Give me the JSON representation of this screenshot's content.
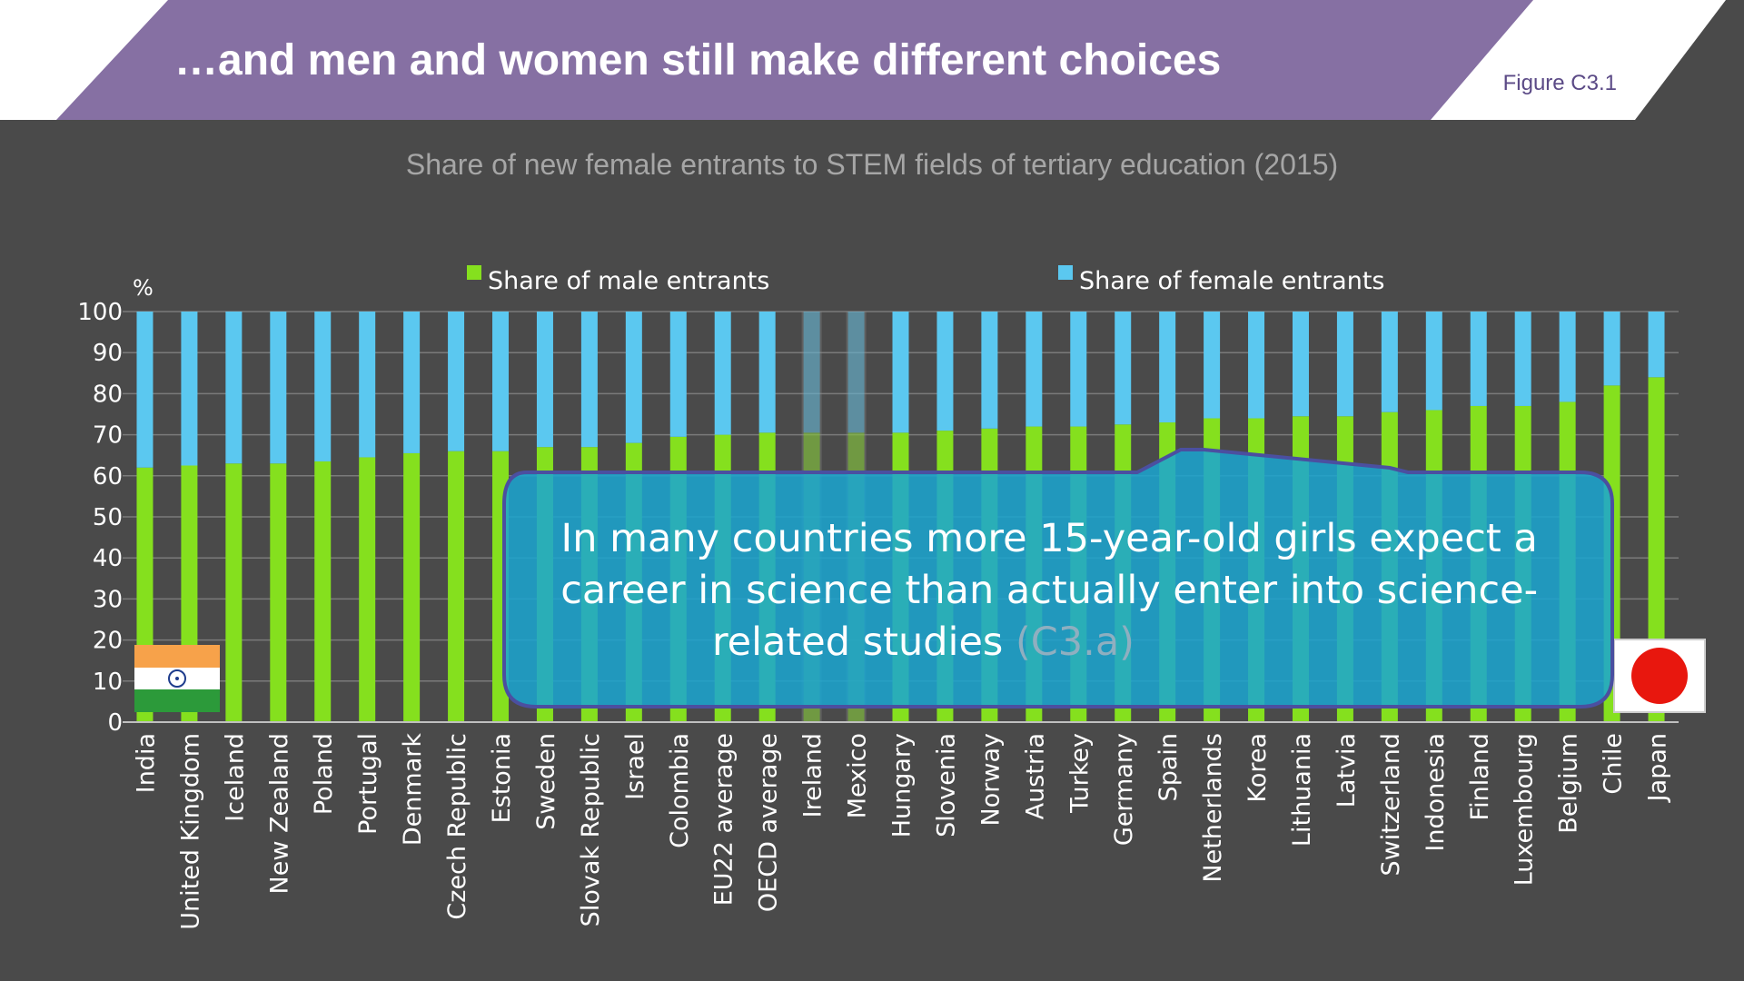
{
  "slide": {
    "title": "…and men and women still make different choices",
    "figure_label": "Figure C3.1",
    "colors": {
      "banner": "#8670A3",
      "background": "#4A4A4A",
      "male": "#85E01E",
      "female": "#5BC8F0",
      "callout_fill": "#1BA5D1",
      "callout_border": "#4B4FA0"
    }
  },
  "chart_data": {
    "type": "bar",
    "stacked": true,
    "title": "Share of new female entrants to STEM fields of tertiary education (2015)",
    "ylabel": "%",
    "ylim": [
      0,
      100
    ],
    "yticks": [
      0,
      10,
      20,
      30,
      40,
      50,
      60,
      70,
      80,
      90,
      100
    ],
    "grid": true,
    "legend_position": "top",
    "categories": [
      "India",
      "United Kingdom",
      "Iceland",
      "New Zealand",
      "Poland",
      "Portugal",
      "Denmark",
      "Czech Republic",
      "Estonia",
      "Sweden",
      "Slovak Republic",
      "Israel",
      "Colombia",
      "EU22 average",
      "OECD average",
      "Ireland",
      "Mexico",
      "Hungary",
      "Slovenia",
      "Norway",
      "Austria",
      "Turkey",
      "Germany",
      "Spain",
      "Netherlands",
      "Korea",
      "Lithuania",
      "Latvia",
      "Switzerland",
      "Indonesia",
      "Finland",
      "Luxembourg",
      "Belgium",
      "Chile",
      "Japan"
    ],
    "highlighted": [
      "Ireland",
      "Mexico"
    ],
    "series": [
      {
        "name": "Share of male entrants",
        "color": "#85E01E",
        "values": [
          62,
          62.5,
          63,
          63,
          63.5,
          64.5,
          65.5,
          66,
          66,
          67,
          67,
          68,
          69.5,
          70,
          70.5,
          70.5,
          70.5,
          70.5,
          71,
          71.5,
          72,
          72,
          72.5,
          73,
          74,
          74,
          74.5,
          74.5,
          75.5,
          76,
          77,
          77,
          78,
          82,
          84
        ]
      },
      {
        "name": "Share of female entrants",
        "color": "#5BC8F0",
        "values": [
          38,
          37.5,
          37,
          37,
          36.5,
          35.5,
          34.5,
          34,
          34,
          33,
          33,
          32,
          30.5,
          30,
          29.5,
          29.5,
          29.5,
          29.5,
          29,
          28.5,
          28,
          28,
          27.5,
          27,
          26,
          26,
          25.5,
          25.5,
          24.5,
          24,
          23,
          23,
          22,
          18,
          16
        ]
      }
    ]
  },
  "callout": {
    "text": "In many countries more 15-year-old girls expect a career in science than actually enter into science-related studies",
    "line1": "In many countries more 15-year-old girls expect a",
    "line2": "career in science than actually enter into science-",
    "line3": "related studies ",
    "ref": "(C3.a)"
  },
  "flags": {
    "left": "india-flag",
    "right": "japan-flag"
  }
}
